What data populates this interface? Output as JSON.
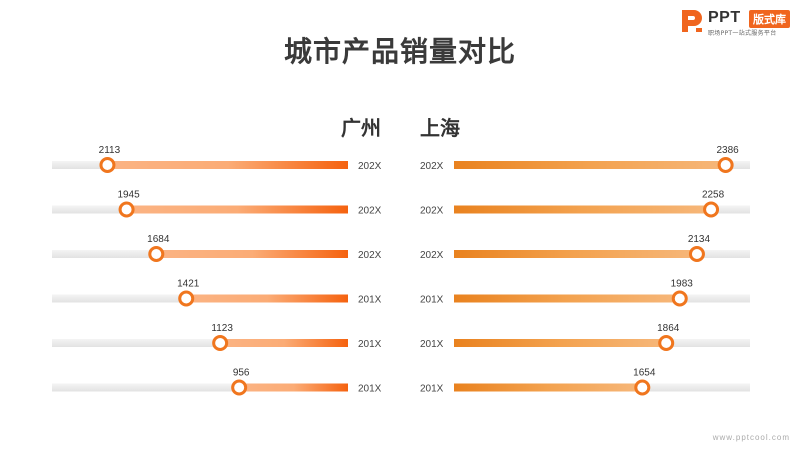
{
  "brand": {
    "name": "PPT",
    "badge": "版式库",
    "tagline": "职场PPT一站式服务平台",
    "footer_url": "www.pptcool.com"
  },
  "colors": {
    "left_bar": "#f56a16",
    "right_bar": "#ec8a26",
    "track": "#ececec",
    "marker_stroke": "#f0761e",
    "title": "#3a3a3a"
  },
  "chart_data": {
    "type": "bar",
    "title": "城市产品销量对比",
    "categories": [
      "202X",
      "202X",
      "202X",
      "201X",
      "201X",
      "201X"
    ],
    "series": [
      {
        "name": "广州",
        "values": [
          2113,
          1945,
          1684,
          1421,
          1123,
          956
        ]
      },
      {
        "name": "上海",
        "values": [
          2386,
          2258,
          2134,
          1983,
          1864,
          1654
        ]
      }
    ],
    "xlim": [
      0,
      2600
    ]
  }
}
